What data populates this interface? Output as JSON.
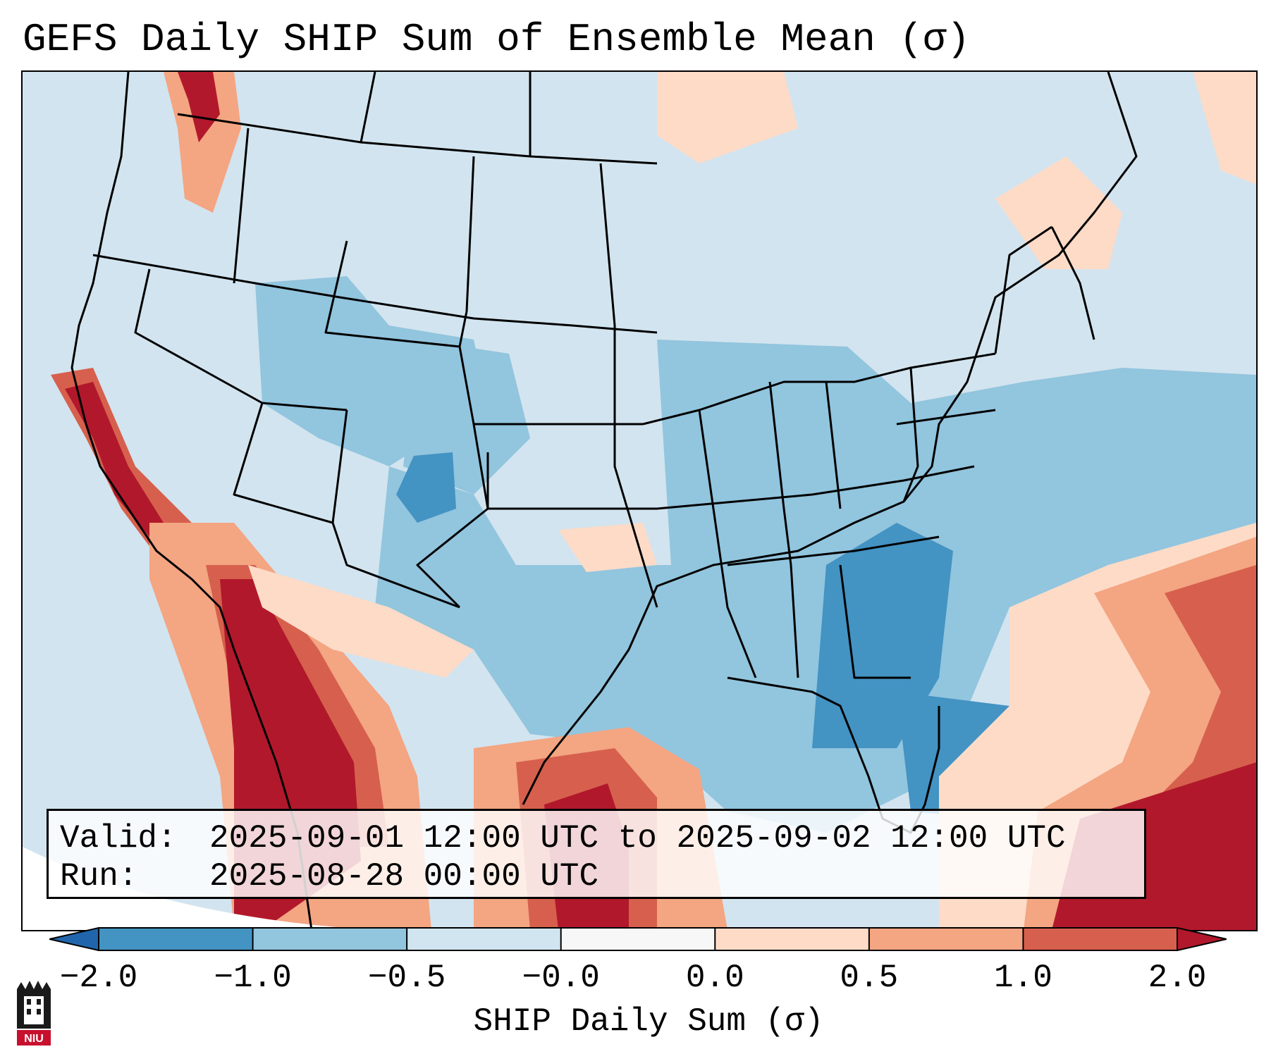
{
  "title": "GEFS Daily SHIP Sum of Ensemble Mean (σ)",
  "info": {
    "valid_key": "Valid:",
    "valid_value": "2025-09-01 12:00 UTC to 2025-09-02 12:00 UTC",
    "run_key": "Run:",
    "run_value": "2025-08-28 00:00 UTC"
  },
  "colorbar": {
    "label": "SHIP Daily Sum (σ)",
    "ticks": [
      "−2.0",
      "−1.0",
      "−0.5",
      "−0.0",
      "0.0",
      "0.5",
      "1.0",
      "2.0"
    ],
    "colors": [
      "#4393c3",
      "#92c5de",
      "#d1e5f0",
      "#f7f7f7",
      "#fddbc7",
      "#f4a582",
      "#d6604d"
    ],
    "under_color": "#2166ac",
    "over_color": "#b2182b"
  },
  "map": {
    "background_color": "#d2e4ef",
    "region": "Contiguous United States"
  },
  "logo": {
    "text": "NIU"
  }
}
